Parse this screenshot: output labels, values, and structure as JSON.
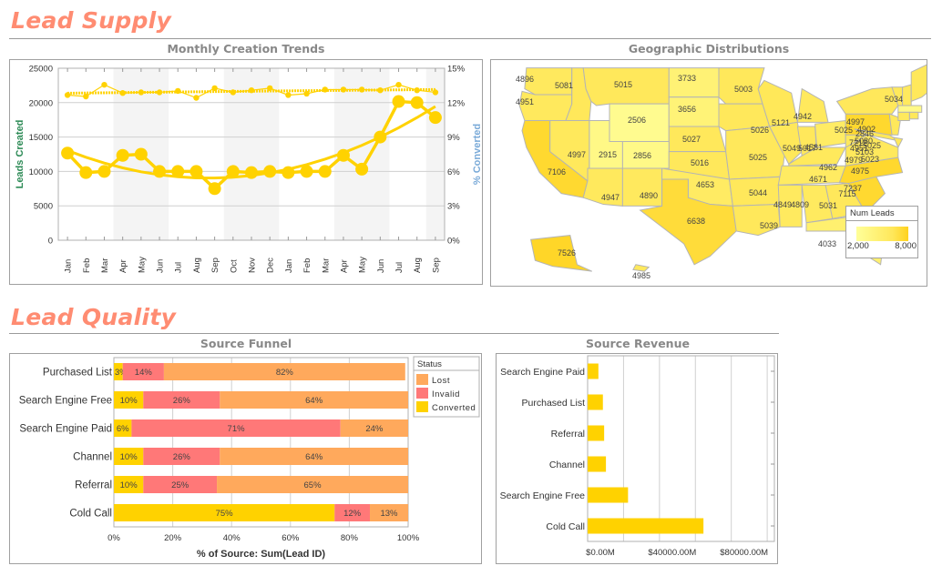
{
  "sections": {
    "lead_supply": "Lead Supply",
    "lead_quality": "Lead Quality"
  },
  "panels": {
    "monthly_trends": "Monthly Creation Trends",
    "geo": "Geographic Distributions",
    "funnel": "Source Funnel",
    "revenue": "Source Revenue"
  },
  "colors": {
    "section_title": "#FF8C72",
    "series": "#FFD200",
    "band": "#F4F4F4",
    "lost": "#FFA95C",
    "invalid": "#FF7878",
    "converted": "#FFD200",
    "left_axis_label": "#2E8B57",
    "right_axis_label": "#7AAAD8",
    "map_low": "#FFFF99",
    "map_high": "#FFD21E"
  },
  "chart_data": [
    {
      "id": "monthly_trends",
      "type": "line",
      "title": "Monthly Creation Trends",
      "ylabel": "Leads Created",
      "y2label": "% Converted",
      "ylim": [
        0,
        25000
      ],
      "y2lim": [
        0,
        15
      ],
      "yticks": [
        "0",
        "5000",
        "10000",
        "15000",
        "20000",
        "25000"
      ],
      "y2ticks": [
        "0%",
        "3%",
        "6%",
        "9%",
        "12%",
        "15%"
      ],
      "categories": [
        "Jan",
        "Feb",
        "Mar",
        "Apr",
        "May",
        "Jun",
        "Jul",
        "Aug",
        "Sep",
        "Oct",
        "Nov",
        "Dec",
        "Jan",
        "Feb",
        "Mar",
        "Apr",
        "May",
        "Jun",
        "Jul",
        "Aug",
        "Sep"
      ],
      "shaded_bands": [
        [
          3,
          5
        ],
        [
          9,
          11
        ],
        [
          15,
          17
        ],
        [
          20,
          20
        ]
      ],
      "series": [
        {
          "name": "Leads Created",
          "axis": "left",
          "marker": "small",
          "trend": true,
          "values": [
            21100,
            20900,
            22600,
            21400,
            21500,
            21500,
            21700,
            20700,
            22100,
            21500,
            21800,
            22100,
            21100,
            21300,
            21900,
            21900,
            21900,
            21800,
            22600,
            21800,
            21500
          ]
        },
        {
          "name": "% Converted",
          "axis": "right",
          "marker": "large",
          "trend": true,
          "values": [
            7.6,
            5.9,
            6.0,
            7.4,
            7.5,
            6.0,
            6.0,
            6.0,
            4.5,
            6.0,
            5.9,
            6.0,
            5.9,
            6.0,
            6.0,
            7.4,
            6.2,
            9.0,
            12.1,
            12.0,
            10.7
          ]
        }
      ],
      "grid": true
    },
    {
      "id": "geo",
      "type": "map",
      "title": "Geographic Distributions",
      "legend": {
        "title": "Num Leads",
        "min_label": "2,000",
        "max_label": "8,000",
        "min": 2000,
        "max": 8000,
        "placement": "bottom-right"
      },
      "states": [
        {
          "code": "WA",
          "value": 4896
        },
        {
          "code": "OR",
          "value": 4951
        },
        {
          "code": "ID",
          "value": 5081
        },
        {
          "code": "MT",
          "value": 5015
        },
        {
          "code": "WY",
          "value": 2506
        },
        {
          "code": "ND",
          "value": 3733
        },
        {
          "code": "SD",
          "value": 3656
        },
        {
          "code": "NE",
          "value": 5027
        },
        {
          "code": "CA",
          "value": 7106
        },
        {
          "code": "NV",
          "value": 4997
        },
        {
          "code": "UT",
          "value": 2915
        },
        {
          "code": "CO",
          "value": 2856
        },
        {
          "code": "KS",
          "value": 5016
        },
        {
          "code": "AZ",
          "value": 4947
        },
        {
          "code": "NM",
          "value": 4890
        },
        {
          "code": "OK",
          "value": 4653
        },
        {
          "code": "TX",
          "value": 6638
        },
        {
          "code": "MN",
          "value": 5003
        },
        {
          "code": "IA",
          "value": 5026
        },
        {
          "code": "MO",
          "value": 5025
        },
        {
          "code": "AR",
          "value": 5044
        },
        {
          "code": "LA",
          "value": 5039
        },
        {
          "code": "WI",
          "value": 5121
        },
        {
          "code": "IL",
          "value": 5049
        },
        {
          "code": "MI",
          "value": 4942
        },
        {
          "code": "IN",
          "value": 5017
        },
        {
          "code": "OH",
          "value": 4581
        },
        {
          "code": "KY",
          "value": 4962
        },
        {
          "code": "TN",
          "value": 4671
        },
        {
          "code": "MS",
          "value": 4849
        },
        {
          "code": "AL",
          "value": 4809
        },
        {
          "code": "GA",
          "value": 5031
        },
        {
          "code": "FL",
          "value": 4033
        },
        {
          "code": "SC",
          "value": 7115
        },
        {
          "code": "NC",
          "value": 7237
        },
        {
          "code": "VA",
          "value": 4975
        },
        {
          "code": "WV",
          "value": 4979
        },
        {
          "code": "PA",
          "value": 7212
        },
        {
          "code": "NY",
          "value": 5025
        },
        {
          "code": "NJ",
          "value": 5025
        },
        {
          "code": "MD",
          "value": 5103
        },
        {
          "code": "DE",
          "value": 5023
        },
        {
          "code": "VT",
          "value": 4997
        },
        {
          "code": "NH",
          "value": 4902
        },
        {
          "code": "MA",
          "value": 2846
        },
        {
          "code": "RI",
          "value": 5080
        },
        {
          "code": "CT",
          "value": 4951
        },
        {
          "code": "ME",
          "value": 5034
        },
        {
          "code": "AK",
          "value": 7526
        },
        {
          "code": "HI",
          "value": 4985
        }
      ]
    },
    {
      "id": "funnel",
      "type": "bar",
      "orientation": "horizontal",
      "stacked": "percent",
      "title": "Source Funnel",
      "xlabel": "% of Source: Sum(Lead ID)",
      "xticks": [
        "0%",
        "20%",
        "40%",
        "60%",
        "80%",
        "100%"
      ],
      "xlim": [
        0,
        100
      ],
      "categories": [
        "Purchased List",
        "Search Engine Free",
        "Search Engine Paid",
        "Channel",
        "Referral",
        "Cold Call"
      ],
      "series": [
        {
          "name": "Converted",
          "values": [
            3,
            10,
            6,
            10,
            10,
            75
          ]
        },
        {
          "name": "Invalid",
          "values": [
            14,
            26,
            71,
            26,
            25,
            12
          ]
        },
        {
          "name": "Lost",
          "values": [
            82,
            64,
            24,
            64,
            65,
            13
          ]
        }
      ],
      "legend": {
        "title": "Status",
        "entries": [
          "Lost",
          "Invalid",
          "Converted"
        ],
        "placement": "top-right"
      }
    },
    {
      "id": "revenue",
      "type": "bar",
      "orientation": "horizontal",
      "title": "Source Revenue",
      "categories": [
        "Search Engine Paid",
        "Purchased List",
        "Referral",
        "Channel",
        "Search Engine Free",
        "Cold Call"
      ],
      "values": [
        6000,
        8500,
        9200,
        10200,
        22500,
        64500
      ],
      "xticks": [
        "$0.00M",
        "$40000.00M",
        "$80000.00M"
      ],
      "xlim": [
        0,
        104000
      ],
      "units": "$M",
      "grid": true
    }
  ]
}
